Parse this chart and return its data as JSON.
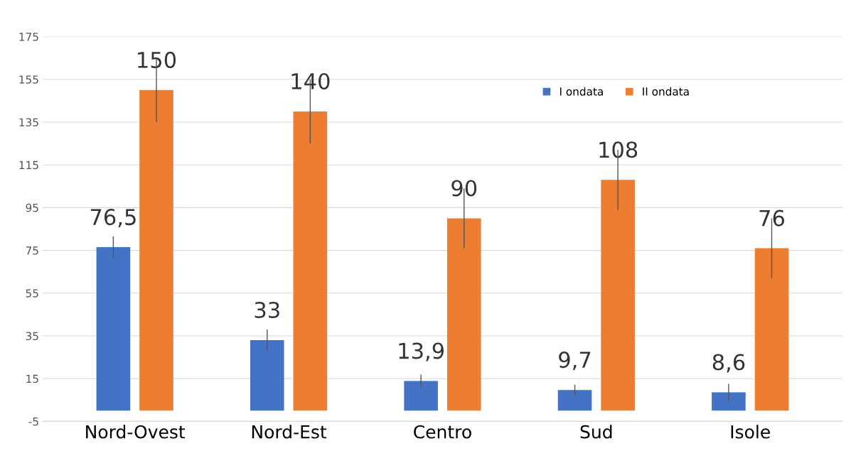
{
  "chart_data": {
    "type": "bar",
    "categories": [
      "Nord-Ovest",
      "Nord-Est",
      "Centro",
      "Sud",
      "Isole"
    ],
    "series": [
      {
        "name": "I ondata",
        "color": "#4472c4",
        "values": [
          76.5,
          33,
          13.9,
          9.7,
          8.6
        ],
        "errors": [
          5,
          5,
          3,
          2.5,
          4
        ],
        "value_labels": [
          "76,5",
          "33",
          "13,9",
          "9,7",
          "8,6"
        ]
      },
      {
        "name": "II ondata",
        "color": "#ed7d31",
        "values": [
          150,
          140,
          90,
          108,
          76
        ],
        "errors": [
          15,
          15,
          14,
          14,
          14
        ],
        "value_labels": [
          "150",
          "140",
          "90",
          "108",
          "76"
        ]
      }
    ],
    "ylim": [
      -5,
      175
    ],
    "yticks": [
      -5,
      15,
      35,
      55,
      75,
      95,
      115,
      135,
      155,
      175
    ],
    "grid": "y",
    "legend": "top right"
  }
}
